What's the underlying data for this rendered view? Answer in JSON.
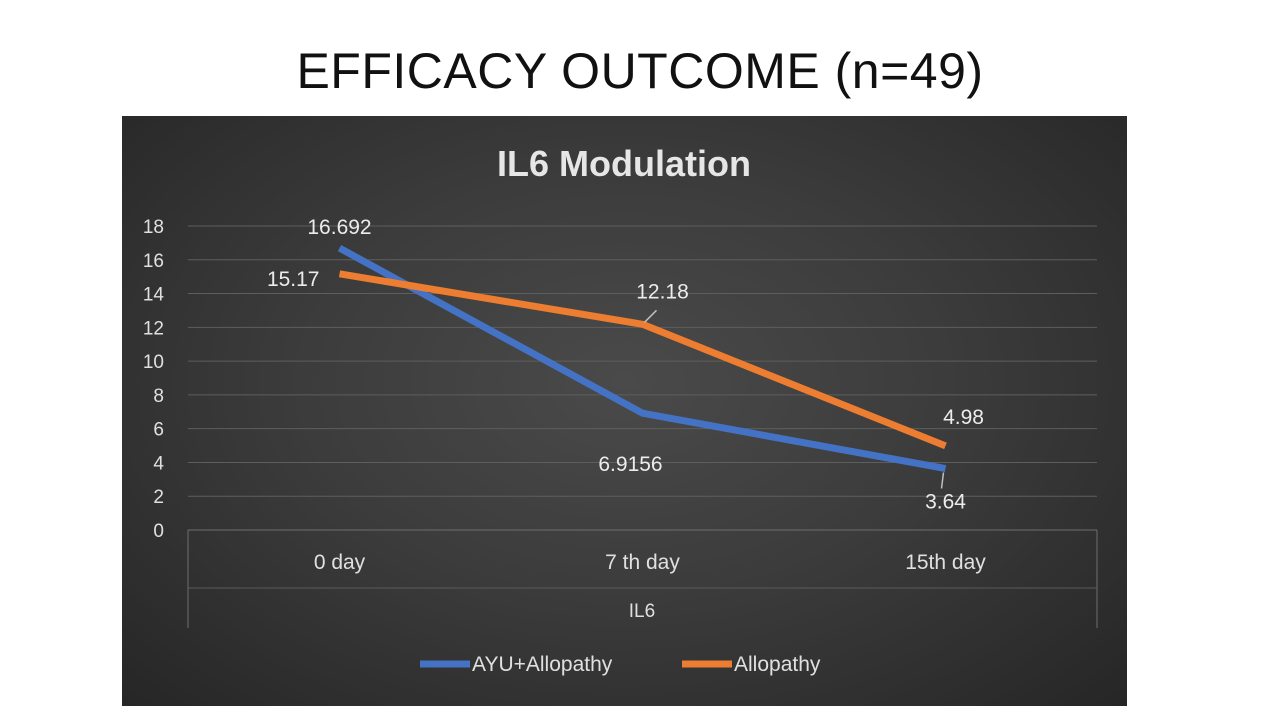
{
  "slide": {
    "title": "EFFICACY OUTCOME (n=49)"
  },
  "chart_data": {
    "type": "line",
    "title": "IL6 Modulation",
    "xlabel": "IL6",
    "ylabel": "",
    "categories": [
      "0 day",
      "7 th day",
      "15th day"
    ],
    "ylim": [
      0,
      18
    ],
    "yticks": [
      0,
      2,
      4,
      6,
      8,
      10,
      12,
      14,
      16,
      18
    ],
    "grid": true,
    "legend_position": "bottom",
    "series": [
      {
        "name": "AYU+Allopathy",
        "values": [
          16.692,
          6.9156,
          3.64
        ],
        "labels": [
          "16.692",
          "6.9156",
          "3.64"
        ],
        "color": "#4472c4"
      },
      {
        "name": "Allopathy",
        "values": [
          15.17,
          12.18,
          4.98
        ],
        "labels": [
          "15.17",
          "12.18",
          "4.98"
        ],
        "color": "#ed7d31"
      }
    ],
    "colors": {
      "background": "#3a3a3a",
      "gridline": "#5e5e5e",
      "text": "#e0e0e0"
    }
  }
}
